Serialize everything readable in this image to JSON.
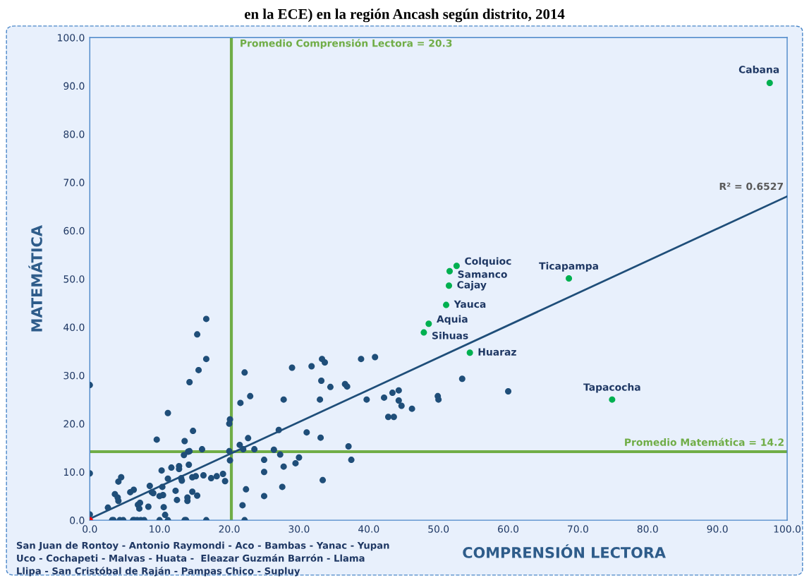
{
  "chart_data": {
    "type": "scatter",
    "title": "en la ECE) en la región Ancash según distrito, 2014",
    "xlabel": "COMPRENSIÓN LECTORA",
    "ylabel": "MATEMÁTICA",
    "xlim": [
      0,
      100
    ],
    "ylim": [
      0,
      100
    ],
    "xticks": [
      {
        "value": 0,
        "label": "0.0"
      },
      {
        "value": 10,
        "label": "10.0"
      },
      {
        "value": 20,
        "label": "20.0"
      },
      {
        "value": 30,
        "label": "30.0"
      },
      {
        "value": 40,
        "label": "40.0"
      },
      {
        "value": 50,
        "label": "50.0"
      },
      {
        "value": 60,
        "label": "60.0"
      },
      {
        "value": 70,
        "label": "70.0"
      },
      {
        "value": 80,
        "label": "80.0"
      },
      {
        "value": 90,
        "label": "90.0"
      },
      {
        "value": 100,
        "label": "100.0"
      }
    ],
    "yticks": [
      {
        "value": 0,
        "label": "0.0"
      },
      {
        "value": 10,
        "label": "10.0"
      },
      {
        "value": 20,
        "label": "20.0"
      },
      {
        "value": 30,
        "label": "30.0"
      },
      {
        "value": 40,
        "label": "40.0"
      },
      {
        "value": 50,
        "label": "50.0"
      },
      {
        "value": 60,
        "label": "60.0"
      },
      {
        "value": 70,
        "label": "70.0"
      },
      {
        "value": 80,
        "label": "80.0"
      },
      {
        "value": 90,
        "label": "90.0"
      },
      {
        "value": 100,
        "label": "100.0"
      }
    ],
    "grid": false,
    "marker": "circle",
    "series": [
      {
        "color": "#1f4e79",
        "x": [
          16.7,
          15.4,
          16.7,
          15.6,
          14.3,
          0,
          11.2,
          22.2,
          23.0,
          21.6,
          20.1,
          20.0,
          14.8,
          9.6,
          13.6,
          22.7,
          14.3,
          14.1,
          16.1,
          13.5,
          20.0,
          21.5,
          22.0,
          20.1,
          0,
          4.5,
          4.1,
          10.3,
          11.7,
          12.8,
          12.8,
          14.2,
          11.2,
          13.1,
          13.2,
          14.7,
          15.2,
          16.3,
          17.4,
          18.2,
          19.1,
          19.4,
          6.3,
          5.8,
          3.6,
          4.0,
          4.1,
          8.6,
          8.9,
          9.1,
          10.4,
          10.0,
          10.5,
          12.3,
          14.7,
          15.4,
          12.5,
          14.0,
          14.0,
          7.2,
          6.9,
          7.1,
          8.4,
          10.6,
          10.8,
          2.6,
          0,
          22.4,
          21.9,
          3.2,
          3.4,
          4.3,
          4.8,
          6.2,
          6.4,
          6.8,
          7.3,
          7.8,
          10.0,
          11.2,
          13.6,
          13.8,
          16.7,
          22.2,
          29.0,
          31.8,
          33.3,
          33.7,
          38.9,
          40.9,
          33.2,
          34.5,
          36.6,
          36.9,
          27.8,
          33.0,
          39.7,
          42.2,
          43.4,
          44.3,
          44.3,
          44.7,
          46.2,
          42.8,
          43.6,
          27.1,
          31.1,
          33.1,
          23.6,
          26.4,
          27.3,
          37.1,
          37.5,
          25.0,
          25.0,
          27.8,
          30.0,
          29.5,
          27.6,
          25.0,
          33.4,
          53.4,
          60.0,
          49.9,
          50.0
        ],
        "values": [
          41.7,
          38.5,
          33.4,
          31.1,
          28.6,
          28.0,
          22.2,
          30.6,
          25.7,
          24.3,
          20.9,
          20.0,
          18.5,
          16.7,
          16.4,
          17.0,
          14.3,
          14.2,
          14.7,
          13.5,
          14.3,
          15.6,
          14.7,
          12.4,
          9.7,
          8.9,
          8.0,
          10.3,
          10.9,
          11.2,
          10.6,
          11.5,
          8.6,
          8.7,
          8.2,
          8.9,
          9.1,
          9.3,
          8.7,
          9.1,
          9.6,
          8.1,
          6.3,
          5.8,
          5.4,
          4.7,
          4.0,
          7.1,
          5.8,
          5.6,
          6.9,
          5.0,
          5.2,
          6.1,
          5.9,
          5.1,
          4.2,
          4.7,
          4.0,
          3.6,
          3.2,
          2.4,
          2.8,
          2.7,
          1.1,
          2.6,
          1.2,
          6.4,
          3.1,
          0,
          0,
          0,
          0,
          0,
          0,
          0,
          0,
          0,
          0,
          0,
          0,
          0,
          0,
          0,
          31.6,
          31.9,
          33.4,
          32.7,
          33.4,
          33.8,
          28.9,
          27.6,
          28.2,
          27.7,
          25.0,
          25.0,
          25.0,
          25.4,
          26.4,
          26.9,
          24.8,
          23.7,
          23.1,
          21.4,
          21.4,
          18.7,
          18.2,
          17.1,
          14.7,
          14.6,
          13.6,
          15.3,
          12.5,
          12.5,
          10.0,
          11.1,
          13.0,
          11.8,
          6.9,
          5.0,
          8.3,
          29.3,
          26.7,
          25.7,
          25.0
        ]
      },
      {
        "color": "#00b050",
        "x": [
          97.5,
          52.6,
          51.6,
          51.5,
          51.1,
          48.6,
          47.9,
          54.5,
          68.7,
          74.9
        ],
        "values": [
          90.6,
          52.7,
          51.6,
          48.6,
          44.6,
          40.7,
          38.9,
          34.7,
          50.1,
          25.0
        ]
      },
      {
        "color": "#ff0000",
        "x": [
          0
        ],
        "values": [
          0
        ]
      },
      {
        "type": "line",
        "color": "#1f4e79",
        "marker": "none",
        "x": [
          0,
          100
        ],
        "values": [
          0.3,
          67.1
        ]
      }
    ],
    "ref_lines": [
      {
        "axis": "x",
        "value": 20.3,
        "label": "Promedio Comprensión Lectora = 20.3",
        "color": "#70ad47"
      },
      {
        "axis": "y",
        "value": 14.2,
        "label": "Promedio Matemática = 14.2",
        "color": "#70ad47"
      }
    ],
    "annotations": [
      {
        "text": "Cabana",
        "x": 97.5,
        "y": 90.6
      },
      {
        "text": "Colquioc",
        "x": 52.6,
        "y": 52.7
      },
      {
        "text": "Samanco",
        "x": 51.6,
        "y": 51.6
      },
      {
        "text": "Cajay",
        "x": 51.5,
        "y": 48.6
      },
      {
        "text": "Yauca",
        "x": 51.1,
        "y": 44.6
      },
      {
        "text": "Aquia",
        "x": 48.6,
        "y": 40.7
      },
      {
        "text": "Sihuas",
        "x": 47.9,
        "y": 38.9
      },
      {
        "text": "Huaraz",
        "x": 54.5,
        "y": 34.7
      },
      {
        "text": "Ticapampa",
        "x": 68.7,
        "y": 50.1
      },
      {
        "text": "Tapacocha",
        "x": 74.9,
        "y": 25.0
      },
      "R² = 0.6527",
      "San Juan de Rontoy - Antonio Raymondi - Aco - Bambas - Yanac - Yupan\nUco - Cochapeti - Malvas - Huata -  Eleazar Guzmán Barrón - Llama\nLlipa - San Cristóbal de Raján - Pampas Chico - Supluy"
    ]
  }
}
